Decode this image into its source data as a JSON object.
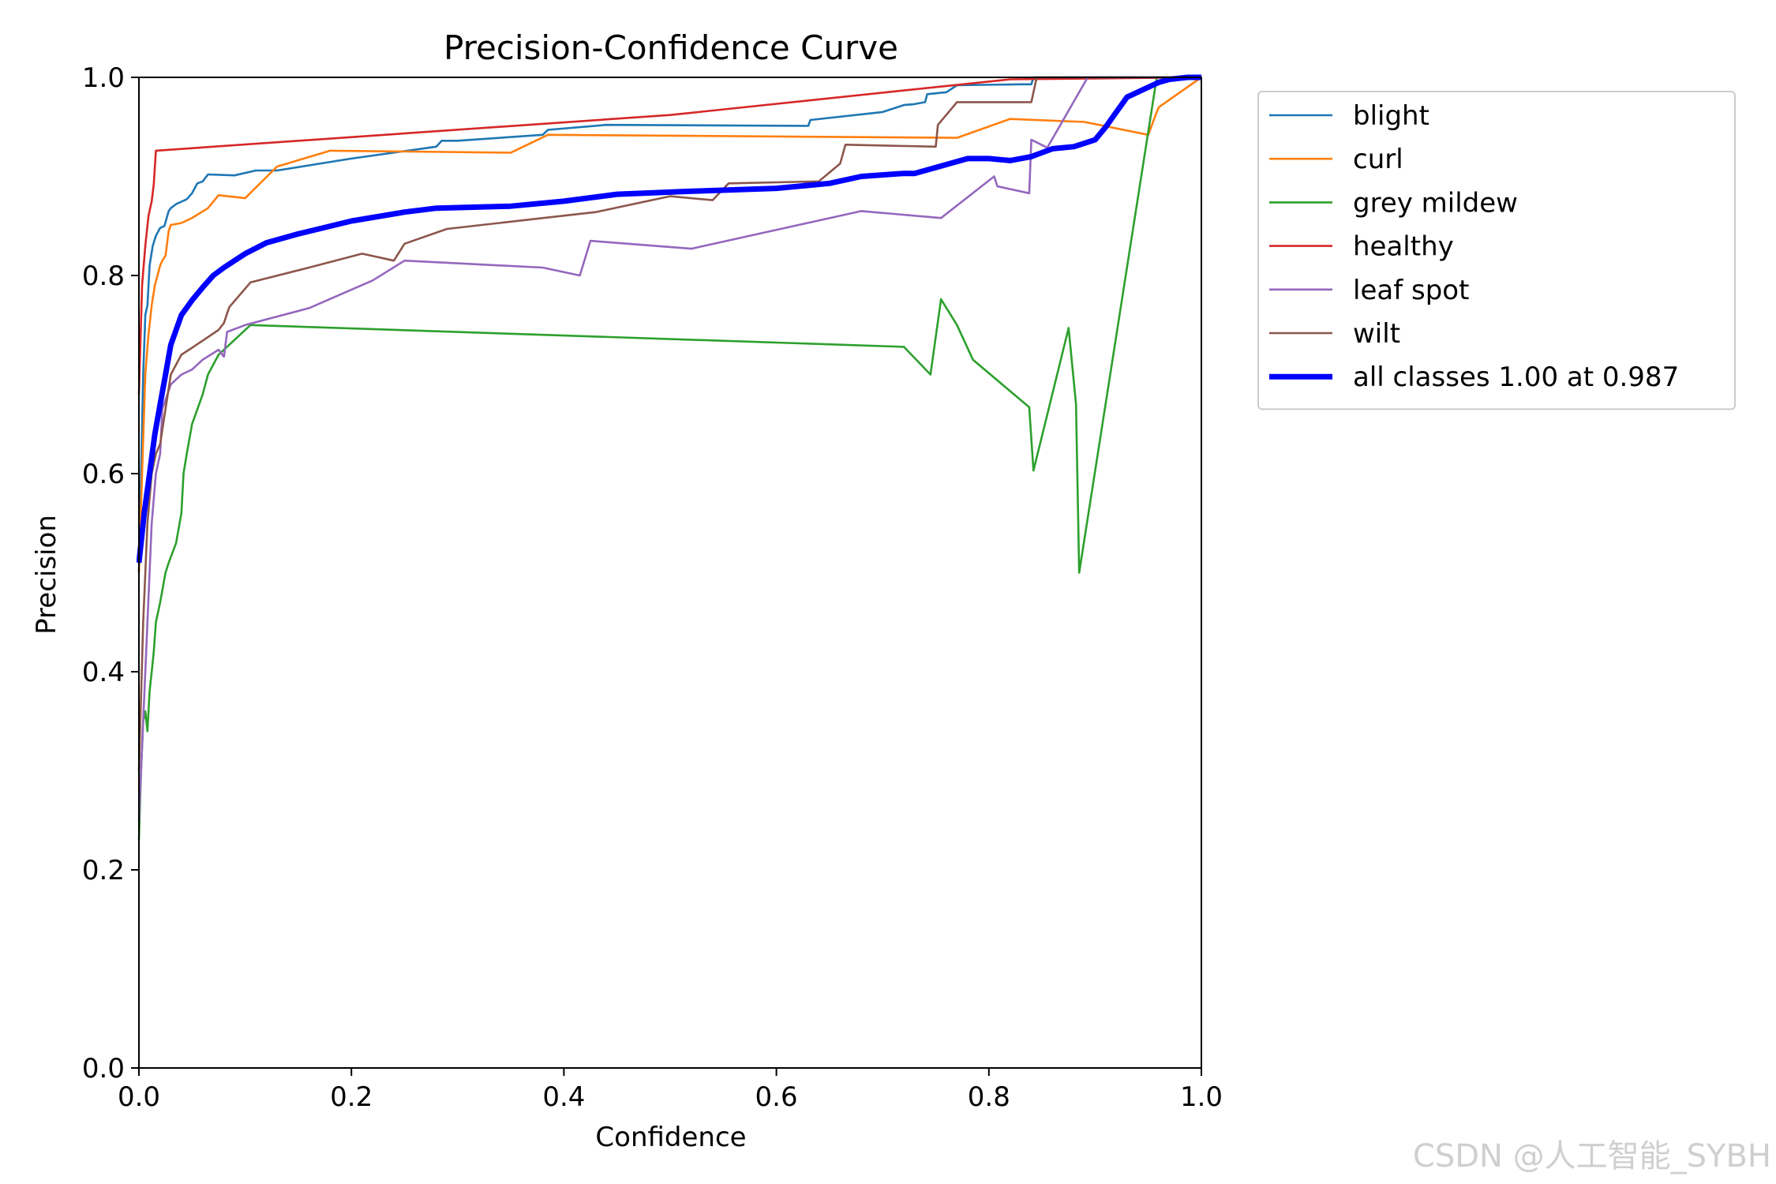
{
  "chart_data": {
    "type": "line",
    "title": "Precision-Confidence Curve",
    "xlabel": "Confidence",
    "ylabel": "Precision",
    "xlim": [
      0,
      1
    ],
    "ylim": [
      0,
      1
    ],
    "xticks": [
      "0.0",
      "0.2",
      "0.4",
      "0.6",
      "0.8",
      "1.0"
    ],
    "yticks": [
      "0.0",
      "0.2",
      "0.4",
      "0.6",
      "0.8",
      "1.0"
    ],
    "legend_position": "outside-top-right",
    "series": [
      {
        "name": "blight",
        "color": "#1f77b4",
        "width": 1.5,
        "x": [
          0.0,
          0.002,
          0.004,
          0.006,
          0.008,
          0.01,
          0.013,
          0.016,
          0.02,
          0.024,
          0.028,
          0.03,
          0.035,
          0.045,
          0.05,
          0.055,
          0.06,
          0.065,
          0.09,
          0.11,
          0.13,
          0.2,
          0.28,
          0.285,
          0.3,
          0.38,
          0.385,
          0.44,
          0.63,
          0.632,
          0.7,
          0.72,
          0.73,
          0.74,
          0.742,
          0.76,
          0.77,
          0.83,
          0.84,
          0.842,
          1.0
        ],
        "y": [
          0.5,
          0.6,
          0.7,
          0.76,
          0.77,
          0.81,
          0.83,
          0.84,
          0.848,
          0.85,
          0.865,
          0.868,
          0.872,
          0.877,
          0.883,
          0.893,
          0.895,
          0.902,
          0.901,
          0.906,
          0.906,
          0.918,
          0.93,
          0.936,
          0.936,
          0.942,
          0.947,
          0.952,
          0.951,
          0.957,
          0.965,
          0.972,
          0.973,
          0.975,
          0.983,
          0.985,
          0.992,
          0.993,
          0.993,
          1.0,
          1.0
        ]
      },
      {
        "name": "curl",
        "color": "#ff7f0e",
        "width": 1.5,
        "x": [
          0.0,
          0.003,
          0.006,
          0.009,
          0.012,
          0.015,
          0.02,
          0.022,
          0.025,
          0.028,
          0.03,
          0.04,
          0.05,
          0.065,
          0.075,
          0.1,
          0.13,
          0.18,
          0.35,
          0.385,
          0.77,
          0.82,
          0.89,
          0.95,
          0.958,
          0.96,
          1.0
        ],
        "y": [
          0.5,
          0.6,
          0.7,
          0.74,
          0.77,
          0.79,
          0.81,
          0.815,
          0.82,
          0.845,
          0.851,
          0.853,
          0.858,
          0.868,
          0.881,
          0.878,
          0.91,
          0.926,
          0.924,
          0.942,
          0.939,
          0.958,
          0.955,
          0.942,
          0.965,
          0.97,
          1.0
        ],
        "y_note": "last segment rises to top near 0.96"
      },
      {
        "name": "grey mildew",
        "color": "#2ca02c",
        "width": 1.5,
        "x": [
          0.0,
          0.002,
          0.004,
          0.006,
          0.008,
          0.01,
          0.012,
          0.014,
          0.016,
          0.02,
          0.025,
          0.028,
          0.035,
          0.04,
          0.042,
          0.045,
          0.05,
          0.06,
          0.065,
          0.075,
          0.105,
          0.72,
          0.745,
          0.755,
          0.77,
          0.785,
          0.838,
          0.842,
          0.875,
          0.882,
          0.885,
          0.958,
          1.0
        ],
        "y": [
          0.23,
          0.3,
          0.35,
          0.36,
          0.34,
          0.38,
          0.4,
          0.42,
          0.45,
          0.47,
          0.5,
          0.51,
          0.53,
          0.56,
          0.6,
          0.62,
          0.65,
          0.68,
          0.7,
          0.72,
          0.75,
          0.728,
          0.7,
          0.776,
          0.75,
          0.715,
          0.667,
          0.603,
          0.747,
          0.67,
          0.5,
          1.0,
          1.0
        ]
      },
      {
        "name": "healthy",
        "color": "#d62728",
        "width": 1.5,
        "x": [
          0.0,
          0.003,
          0.006,
          0.009,
          0.012,
          0.014,
          0.016,
          0.5,
          0.82,
          1.0
        ],
        "y": [
          0.68,
          0.79,
          0.83,
          0.86,
          0.875,
          0.892,
          0.926,
          0.962,
          0.998,
          1.0
        ]
      },
      {
        "name": "leaf spot",
        "color": "#9467bd",
        "width": 1.5,
        "x": [
          0.0,
          0.004,
          0.008,
          0.012,
          0.016,
          0.02,
          0.022,
          0.03,
          0.04,
          0.05,
          0.06,
          0.075,
          0.08,
          0.083,
          0.1,
          0.16,
          0.22,
          0.25,
          0.38,
          0.415,
          0.425,
          0.52,
          0.68,
          0.755,
          0.805,
          0.808,
          0.838,
          0.84,
          0.855,
          0.893,
          1.0
        ],
        "y": [
          0.25,
          0.35,
          0.45,
          0.55,
          0.6,
          0.62,
          0.665,
          0.69,
          0.7,
          0.705,
          0.715,
          0.725,
          0.718,
          0.743,
          0.75,
          0.767,
          0.795,
          0.815,
          0.808,
          0.8,
          0.835,
          0.827,
          0.865,
          0.858,
          0.9,
          0.89,
          0.883,
          0.937,
          0.929,
          1.0,
          1.0
        ]
      },
      {
        "name": "wilt",
        "color": "#8c564b",
        "width": 1.5,
        "x": [
          0.0,
          0.004,
          0.008,
          0.012,
          0.016,
          0.02,
          0.03,
          0.04,
          0.05,
          0.075,
          0.08,
          0.085,
          0.105,
          0.16,
          0.21,
          0.24,
          0.25,
          0.29,
          0.43,
          0.5,
          0.54,
          0.555,
          0.64,
          0.66,
          0.665,
          0.75,
          0.752,
          0.77,
          0.84,
          0.845,
          1.0
        ],
        "y": [
          0.3,
          0.45,
          0.55,
          0.6,
          0.62,
          0.63,
          0.7,
          0.72,
          0.727,
          0.745,
          0.752,
          0.768,
          0.793,
          0.808,
          0.822,
          0.815,
          0.832,
          0.847,
          0.864,
          0.88,
          0.876,
          0.893,
          0.895,
          0.913,
          0.932,
          0.93,
          0.952,
          0.975,
          0.975,
          1.0,
          1.0
        ]
      },
      {
        "name": "all classes 1.00 at 0.987",
        "color": "#0000ff",
        "width": 4,
        "x": [
          0.0,
          0.005,
          0.01,
          0.015,
          0.02,
          0.025,
          0.03,
          0.035,
          0.04,
          0.05,
          0.06,
          0.07,
          0.08,
          0.09,
          0.1,
          0.12,
          0.15,
          0.2,
          0.25,
          0.28,
          0.35,
          0.4,
          0.45,
          0.52,
          0.6,
          0.65,
          0.68,
          0.72,
          0.73,
          0.75,
          0.78,
          0.8,
          0.82,
          0.84,
          0.86,
          0.88,
          0.9,
          0.91,
          0.92,
          0.93,
          0.95,
          0.96,
          0.97,
          0.987,
          1.0
        ],
        "y": [
          0.51,
          0.56,
          0.6,
          0.64,
          0.67,
          0.7,
          0.73,
          0.745,
          0.76,
          0.775,
          0.788,
          0.8,
          0.808,
          0.815,
          0.822,
          0.833,
          0.842,
          0.855,
          0.864,
          0.868,
          0.87,
          0.875,
          0.882,
          0.885,
          0.888,
          0.893,
          0.9,
          0.903,
          0.903,
          0.909,
          0.918,
          0.918,
          0.916,
          0.92,
          0.928,
          0.93,
          0.937,
          0.95,
          0.965,
          0.98,
          0.99,
          0.995,
          0.998,
          1.0,
          1.0
        ]
      }
    ]
  },
  "legend": {
    "items": [
      "blight",
      "curl",
      "grey mildew",
      "healthy",
      "leaf spot",
      "wilt",
      "all classes 1.00 at 0.987"
    ]
  },
  "watermark": "CSDN @人工智能_SYBH"
}
